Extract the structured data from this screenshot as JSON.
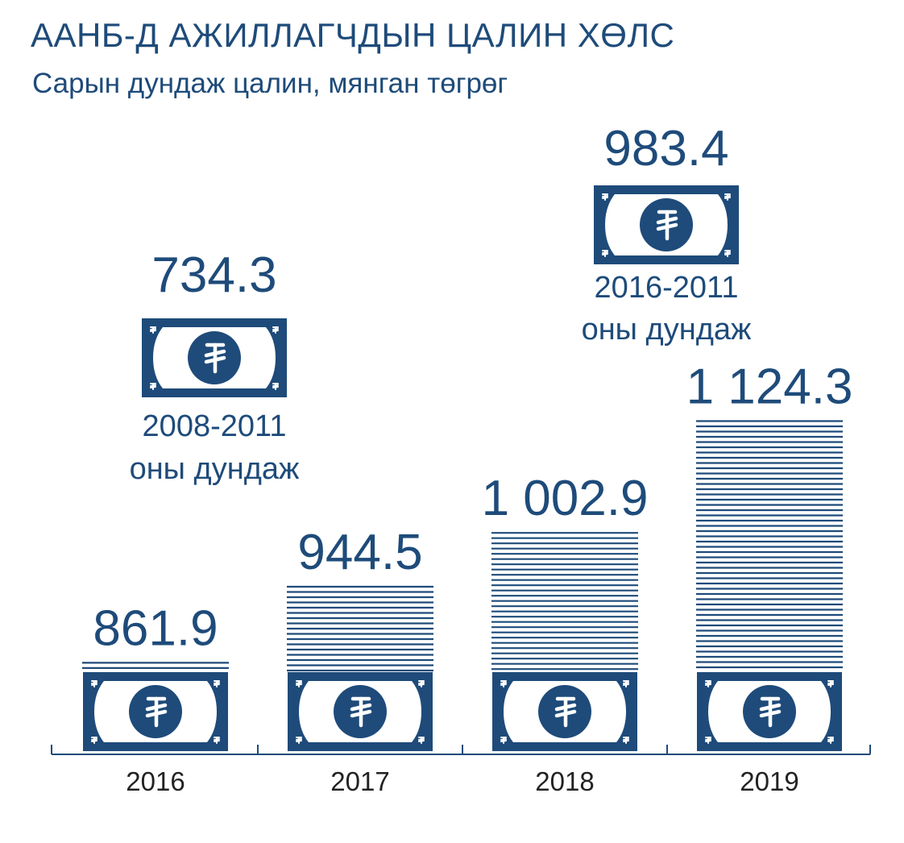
{
  "title": "ААНБ-Д АЖИЛЛАГЧДЫН ЦАЛИН ХӨЛС",
  "subtitle": "Сарын дундаж цалин, мянган төгрөг",
  "colors": {
    "primary": "#1E4B7A",
    "text": "#1E4B7A",
    "axis": "#1E4B7A",
    "year_text": "#222222"
  },
  "icons": {
    "banknote": "tugrik-banknote-icon",
    "currency": "tugrik-sign-icon"
  },
  "chart_data": {
    "type": "bar",
    "categories": [
      "2016",
      "2017",
      "2018",
      "2019"
    ],
    "values": [
      861.9,
      944.5,
      1002.9,
      1124.3
    ],
    "value_labels": [
      "861.9",
      "944.5",
      "1 002.9",
      "1 124.3"
    ],
    "title": "ААНБ-Д АЖИЛЛАГЧДЫН ЦАЛИН ХӨЛС",
    "subtitle": "Сарын дундаж цалин, мянган төгрөг",
    "xlabel": "",
    "ylabel": "",
    "grid": false,
    "legend": "none",
    "references": [
      {
        "value": 734.3,
        "value_label": "734.3",
        "caption": [
          "2008-2011",
          "оны дундаж"
        ]
      },
      {
        "value": 983.4,
        "value_label": "983.4",
        "caption": [
          "2016-2011",
          "оны дундаж"
        ]
      }
    ]
  }
}
